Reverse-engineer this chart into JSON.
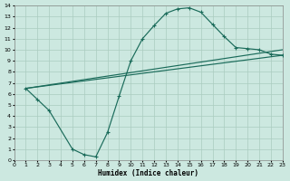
{
  "bg_color": "#cce8e0",
  "grid_color": "#aaccbf",
  "line_color": "#1a6b5a",
  "xlabel": "Humidex (Indice chaleur)",
  "xlim": [
    0,
    23
  ],
  "ylim": [
    0,
    14
  ],
  "xticks": [
    0,
    1,
    2,
    3,
    4,
    5,
    6,
    7,
    8,
    9,
    10,
    11,
    12,
    13,
    14,
    15,
    16,
    17,
    18,
    19,
    20,
    21,
    22,
    23
  ],
  "yticks": [
    0,
    1,
    2,
    3,
    4,
    5,
    6,
    7,
    8,
    9,
    10,
    11,
    12,
    13,
    14
  ],
  "curve_wavy": {
    "x": [
      1,
      2,
      3,
      5,
      6,
      7,
      8,
      9,
      10,
      11,
      12,
      13,
      14,
      15,
      16,
      17,
      18,
      19,
      20,
      21,
      22,
      23
    ],
    "y": [
      6.5,
      5.5,
      4.5,
      1.0,
      0.5,
      0.3,
      2.5,
      5.8,
      9.0,
      11.0,
      12.2,
      13.3,
      13.7,
      13.8,
      13.4,
      12.3,
      11.2,
      10.2,
      10.1,
      10.0,
      9.6,
      9.5
    ]
  },
  "curve_upper": {
    "x": [
      1,
      23
    ],
    "y": [
      6.5,
      10.0
    ]
  },
  "curve_lower": {
    "x": [
      1,
      23
    ],
    "y": [
      6.5,
      9.5
    ]
  }
}
